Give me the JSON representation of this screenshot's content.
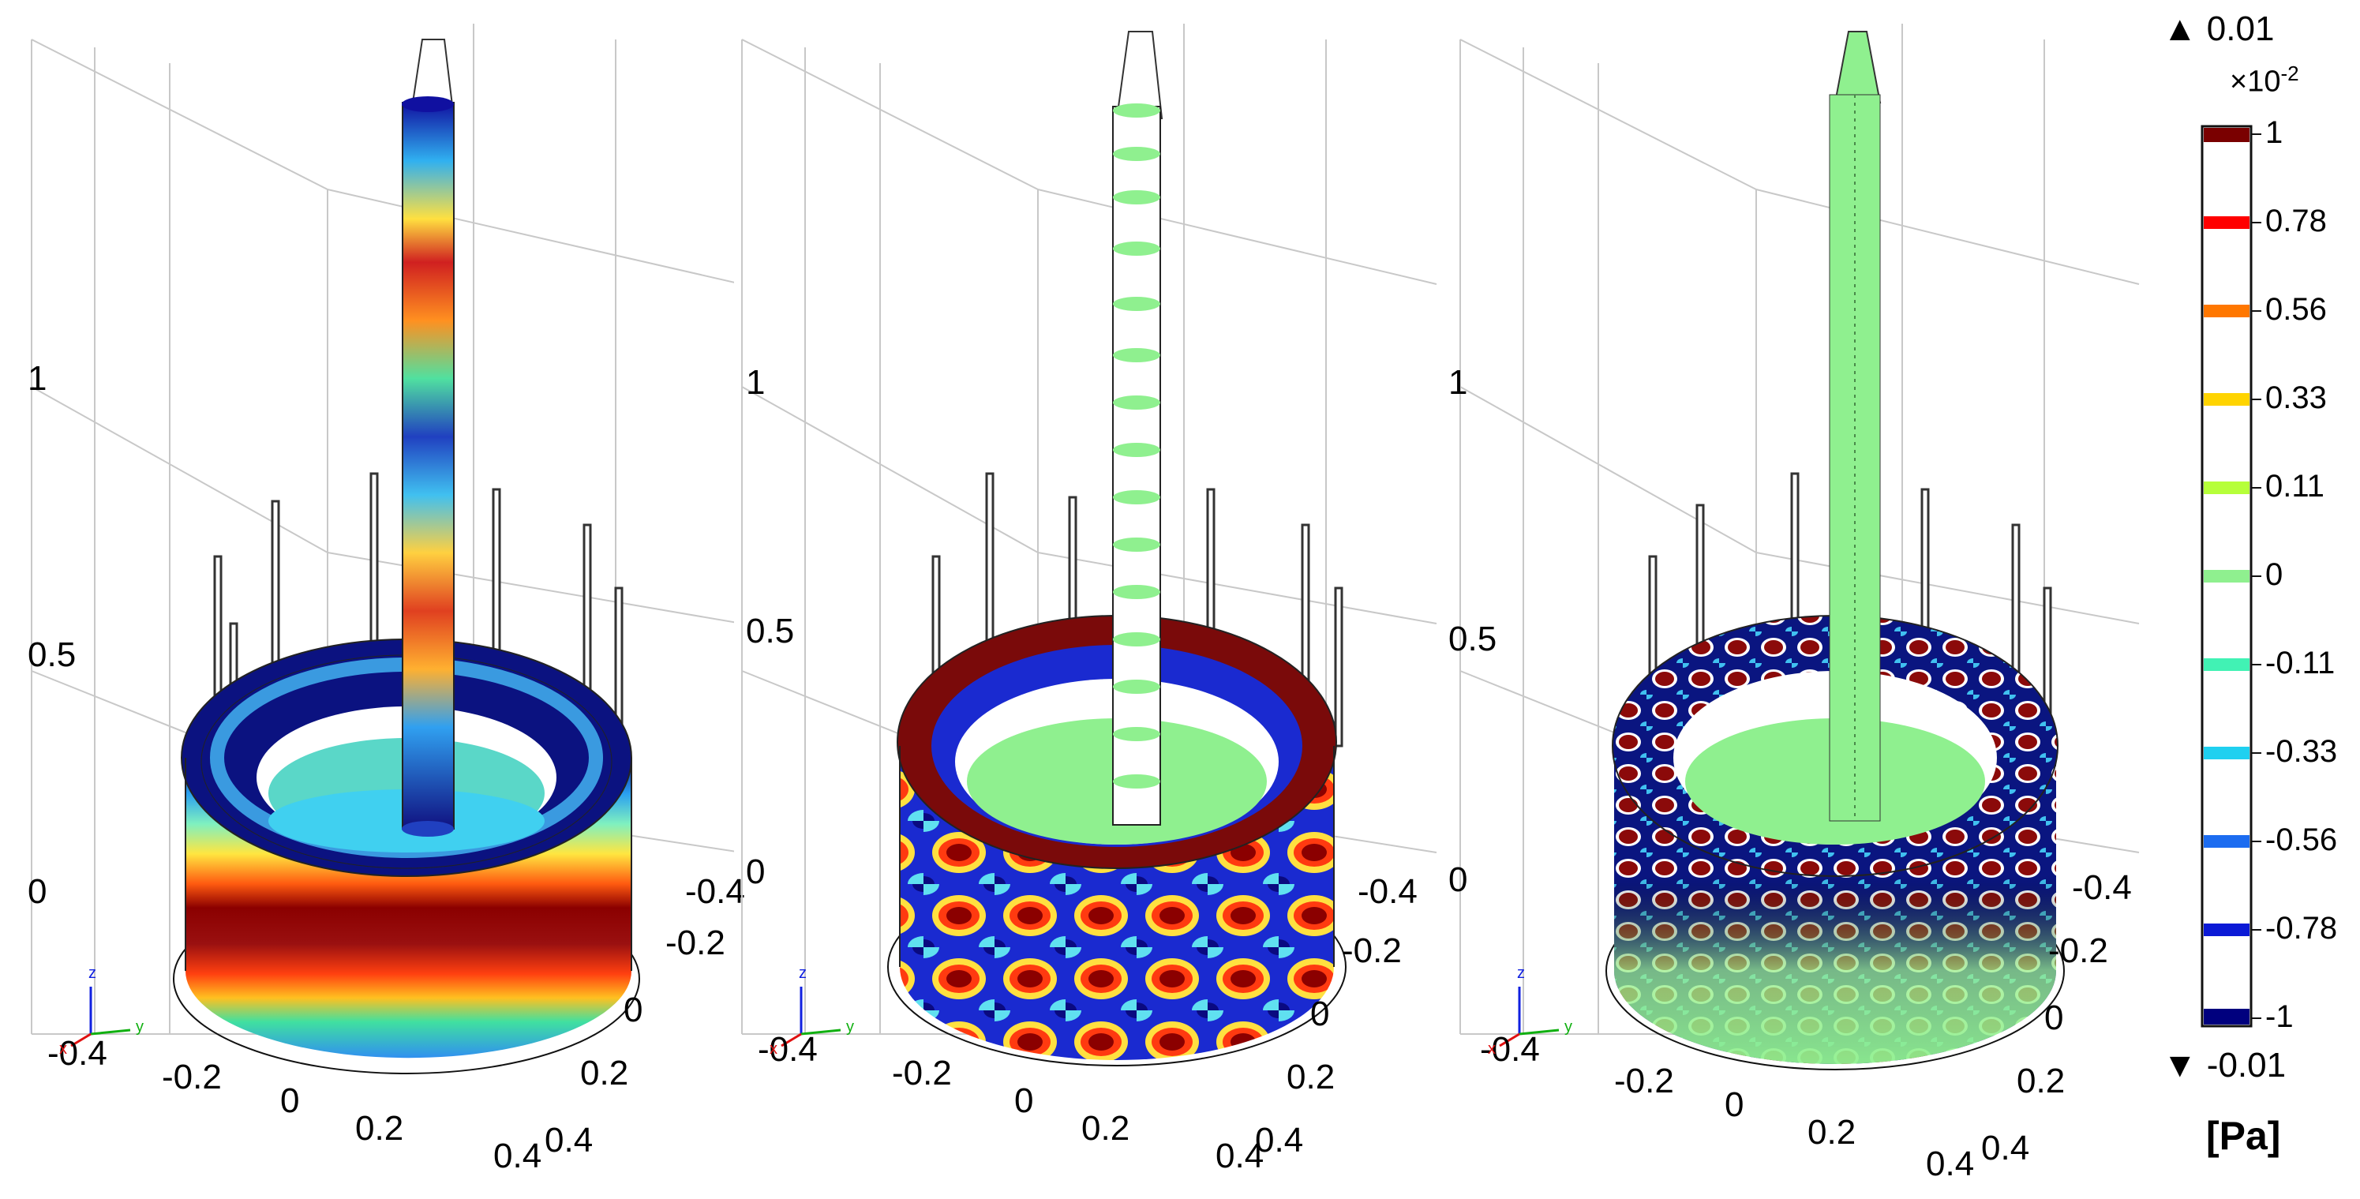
{
  "panels": [
    {
      "z_ticks": [
        "1",
        "0.5",
        "0"
      ],
      "x_ticks": [
        "-0.4",
        "-0.2",
        "0",
        "0.2",
        "0.4"
      ],
      "y_ticks": [
        "-0.4",
        "-0.2",
        "0",
        "0.2",
        "0.4"
      ],
      "triad": {
        "z": "z",
        "y": "y",
        "x": "x"
      }
    },
    {
      "z_ticks": [
        "1",
        "0.5",
        "0"
      ],
      "x_ticks": [
        "-0.4",
        "-0.2",
        "0",
        "0.2",
        "0.4"
      ],
      "y_ticks": [
        "-0.4",
        "-0.2",
        "0",
        "0.2",
        "0.4"
      ],
      "triad": {
        "z": "z",
        "y": "y",
        "x": "x"
      }
    },
    {
      "z_ticks": [
        "1",
        "0.5",
        "0"
      ],
      "x_ticks": [
        "-0.4",
        "-0.2",
        "0",
        "0.2",
        "0.4"
      ],
      "y_ticks": [
        "-0.4",
        "-0.2",
        "0",
        "0.2",
        "0.4"
      ],
      "triad": {
        "z": "z",
        "y": "y",
        "x": "x"
      }
    }
  ],
  "colorbar": {
    "max_label": "0.01",
    "min_label": "-0.01",
    "exponent_base": "×10",
    "exponent_power": "-2",
    "unit": "[Pa]",
    "ticks": [
      "1",
      "0.78",
      "0.56",
      "0.33",
      "0.11",
      "0",
      "-0.11",
      "-0.33",
      "-0.56",
      "-0.78",
      "-1"
    ],
    "colors": {
      "dark_red": "#7a0000",
      "red": "#ff0000",
      "orange": "#ff7700",
      "yellow": "#ffd400",
      "yellowgreen": "#b6ff3a",
      "green": "#8ff08f",
      "aqua": "#41f2b4",
      "cyan": "#1fd0f0",
      "blue": "#1c6cf0",
      "deep_blue": "#0b1ad6",
      "navy": "#00007e"
    }
  }
}
